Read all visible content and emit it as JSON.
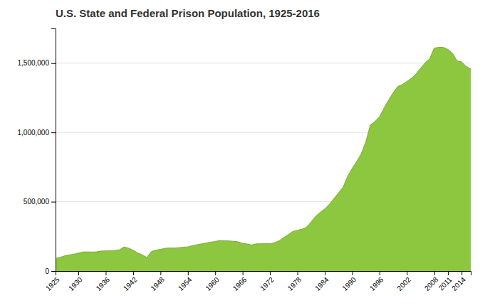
{
  "chart_data": {
    "type": "area",
    "title": "U.S. State and Federal Prison Population, 1925-2016",
    "color": "#8dc63f",
    "x": [
      1925,
      1926,
      1927,
      1928,
      1929,
      1930,
      1931,
      1932,
      1933,
      1934,
      1935,
      1936,
      1937,
      1938,
      1939,
      1940,
      1941,
      1942,
      1943,
      1944,
      1945,
      1946,
      1947,
      1948,
      1949,
      1950,
      1951,
      1952,
      1953,
      1954,
      1955,
      1956,
      1957,
      1958,
      1959,
      1960,
      1961,
      1962,
      1963,
      1964,
      1965,
      1966,
      1967,
      1968,
      1969,
      1970,
      1971,
      1972,
      1973,
      1974,
      1975,
      1976,
      1977,
      1978,
      1979,
      1980,
      1981,
      1982,
      1983,
      1984,
      1985,
      1986,
      1987,
      1988,
      1989,
      1990,
      1991,
      1992,
      1993,
      1994,
      1995,
      1996,
      1997,
      1998,
      1999,
      2000,
      2001,
      2002,
      2003,
      2004,
      2005,
      2006,
      2007,
      2008,
      2009,
      2010,
      2011,
      2012,
      2013,
      2014,
      2015,
      2016
    ],
    "values": [
      91669,
      97991,
      109983,
      116390,
      120496,
      129453,
      137082,
      137997,
      136810,
      138316,
      144180,
      145038,
      146188,
      147872,
      153303,
      173706,
      165439,
      150384,
      130534,
      116756,
      98441,
      140079,
      151304,
      155977,
      163749,
      166165,
      165680,
      168233,
      172002,
      173804,
      182948,
      189565,
      195414,
      202658,
      208105,
      212953,
      220149,
      218830,
      217283,
      214298,
      210895,
      199654,
      194896,
      187914,
      196007,
      196429,
      198061,
      196092,
      204211,
      218466,
      240593,
      262833,
      285456,
      294396,
      301470,
      315974,
      353674,
      394374,
      423898,
      448264,
      480568,
      522084,
      562649,
      603732,
      680907,
      739980,
      789610,
      846004,
      932074,
      1053738,
      1078542,
      1112448,
      1176564,
      1232900,
      1287172,
      1331278,
      1345217,
      1367856,
      1390279,
      1421911,
      1462866,
      1502179,
      1531828,
      1608282,
      1613740,
      1613656,
      1598780,
      1570397,
      1516879,
      1508636,
      1476847,
      1458173
    ],
    "xlim": [
      1925,
      2016
    ],
    "xticks": [
      1925,
      1930,
      1936,
      1942,
      1948,
      1954,
      1960,
      1966,
      1972,
      1978,
      1984,
      1990,
      1996,
      2002,
      2008,
      2011,
      2014
    ],
    "ylim": [
      0,
      1750000
    ],
    "yticks": [
      0,
      {
        "value": 500000,
        "label": "500,000"
      },
      {
        "value": 1000000,
        "label": "1,000,000"
      },
      {
        "value": 1500000,
        "label": "1,500,000"
      }
    ],
    "grid": true
  }
}
